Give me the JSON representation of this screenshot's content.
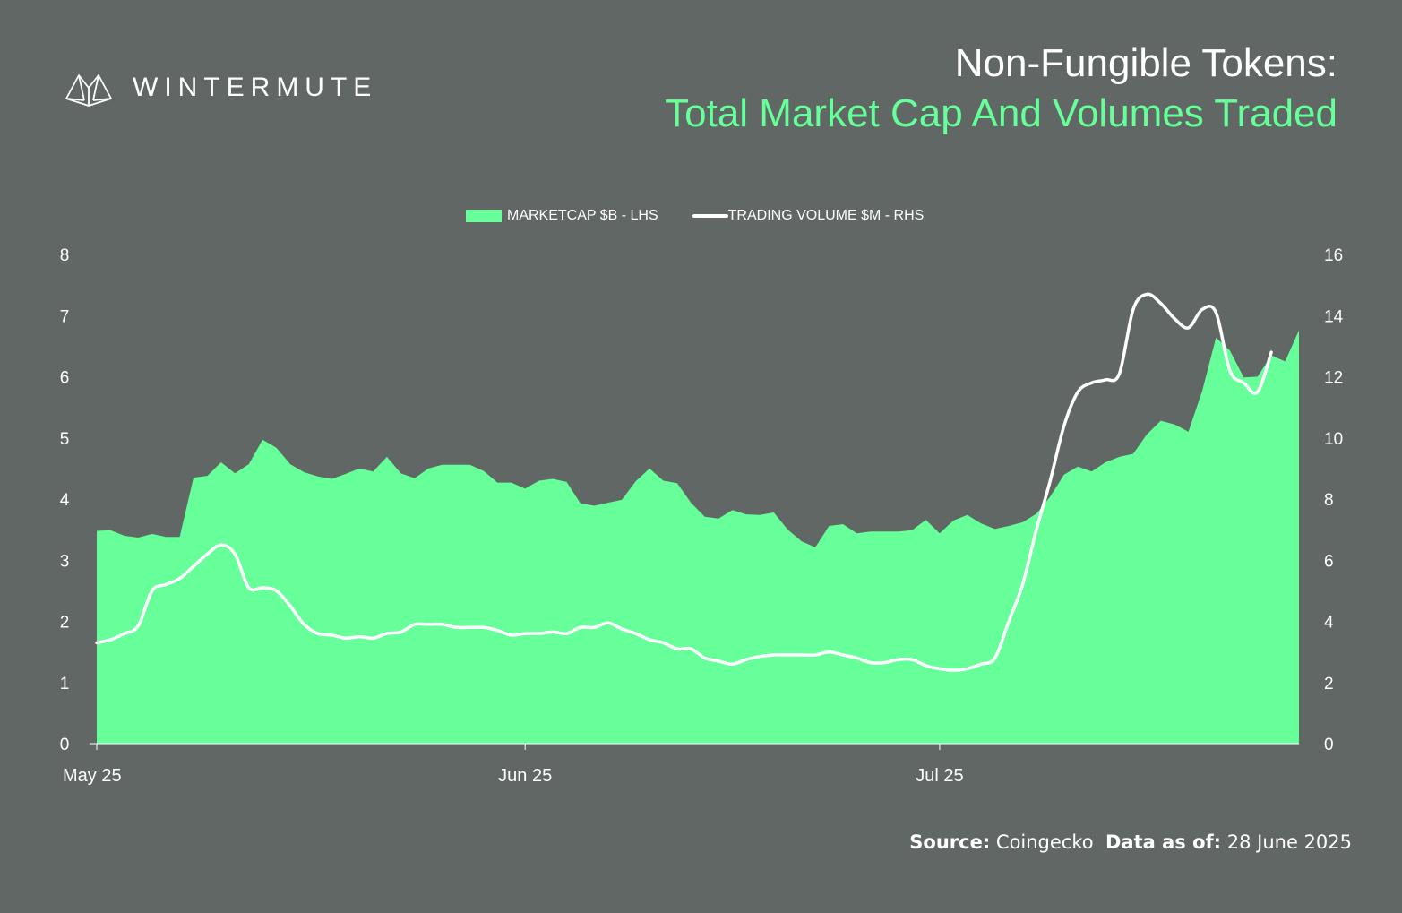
{
  "brand": {
    "name": "WINTERMUTE",
    "logo_icon": "wintermute-logo-icon"
  },
  "title": {
    "line1": "Non-Fungible Tokens:",
    "line2": "Total Market Cap And Volumes Traded"
  },
  "colors": {
    "background": "#616764",
    "accent": "#66ff99",
    "line": "#ffffff"
  },
  "source": {
    "source_label": "Source:",
    "source_value": "Coingecko",
    "date_label": "Data as of:",
    "date_value": "28 June 2025"
  },
  "chart_data": {
    "type": "area",
    "x_ticks": [
      "May 25",
      "Jun 25",
      "Jul 25"
    ],
    "x_tick_index": [
      0,
      31,
      61
    ],
    "y_left": {
      "ticks": [
        0,
        1,
        2,
        3,
        4,
        5,
        6,
        7,
        8
      ],
      "ylim": [
        0,
        8
      ]
    },
    "y_right": {
      "ticks": [
        0,
        2,
        4,
        6,
        8,
        10,
        12,
        14,
        16
      ],
      "ylim": [
        0,
        16
      ]
    },
    "legend_position": "top-center",
    "series": [
      {
        "name": "MARKETCAP $B - LHS",
        "type": "area",
        "axis": "left",
        "values": [
          3.48,
          3.49,
          3.4,
          3.37,
          3.43,
          3.38,
          3.38,
          4.35,
          4.38,
          4.6,
          4.42,
          4.57,
          4.97,
          4.84,
          4.57,
          4.44,
          4.37,
          4.33,
          4.41,
          4.5,
          4.45,
          4.69,
          4.42,
          4.34,
          4.5,
          4.56,
          4.56,
          4.56,
          4.46,
          4.27,
          4.27,
          4.17,
          4.3,
          4.33,
          4.28,
          3.93,
          3.89,
          3.94,
          3.99,
          4.29,
          4.5,
          4.3,
          4.26,
          3.94,
          3.71,
          3.68,
          3.82,
          3.75,
          3.74,
          3.78,
          3.5,
          3.31,
          3.21,
          3.56,
          3.59,
          3.44,
          3.47,
          3.47,
          3.47,
          3.49,
          3.66,
          3.44,
          3.65,
          3.74,
          3.6,
          3.51,
          3.56,
          3.62,
          3.76,
          4.04,
          4.4,
          4.53,
          4.45,
          4.6,
          4.69,
          4.74,
          5.06,
          5.28,
          5.22,
          5.1,
          5.77,
          6.64,
          6.43,
          5.99,
          6.0,
          6.35,
          6.25,
          6.76
        ]
      },
      {
        "name": "TRADING VOLUME $M - RHS",
        "type": "line",
        "axis": "right",
        "values": [
          3.3,
          3.4,
          3.6,
          3.85,
          5.0,
          5.2,
          5.4,
          5.8,
          6.2,
          6.5,
          6.2,
          5.1,
          5.1,
          5.0,
          4.5,
          3.9,
          3.6,
          3.55,
          3.45,
          3.5,
          3.45,
          3.6,
          3.65,
          3.9,
          3.9,
          3.9,
          3.8,
          3.8,
          3.8,
          3.7,
          3.55,
          3.6,
          3.6,
          3.65,
          3.6,
          3.8,
          3.8,
          3.95,
          3.75,
          3.6,
          3.4,
          3.3,
          3.1,
          3.1,
          2.8,
          2.7,
          2.6,
          2.75,
          2.85,
          2.9,
          2.9,
          2.9,
          2.9,
          3.0,
          2.9,
          2.8,
          2.65,
          2.65,
          2.75,
          2.75,
          2.55,
          2.45,
          2.4,
          2.45,
          2.6,
          2.8,
          4.0,
          5.2,
          7.0,
          8.6,
          10.4,
          11.5,
          11.8,
          11.9,
          12.1,
          14.2,
          14.7,
          14.4,
          13.9,
          13.6,
          14.2,
          14.1,
          12.2,
          11.8,
          11.5,
          12.8
        ]
      }
    ]
  }
}
